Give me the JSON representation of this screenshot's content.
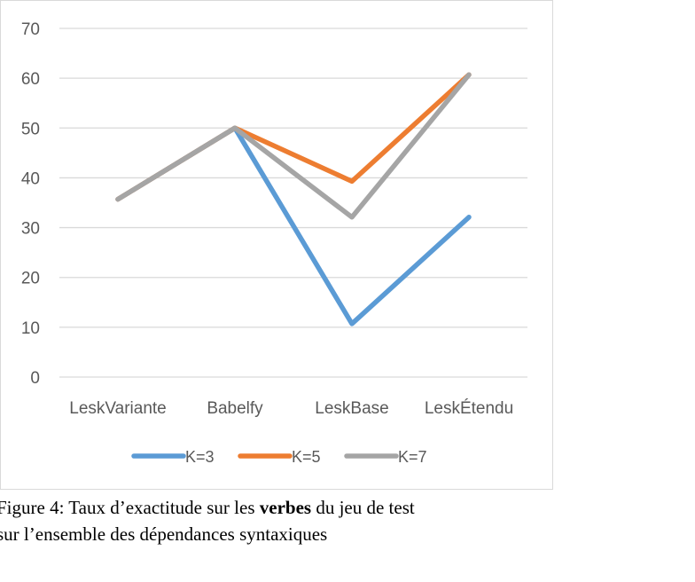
{
  "chart_data": {
    "type": "line",
    "categories": [
      "LeskVariante",
      "Babelfy",
      "LeskBase",
      "LeskÉtendu"
    ],
    "series": [
      {
        "name": "K=3",
        "color": "#5b9bd5",
        "values": [
          35.7,
          50,
          10.7,
          32.1
        ]
      },
      {
        "name": "K=5",
        "color": "#ed7d31",
        "values": [
          35.7,
          50,
          39.3,
          60.7
        ]
      },
      {
        "name": "K=7",
        "color": "#a5a5a5",
        "values": [
          35.7,
          50,
          32.1,
          60.7
        ]
      }
    ],
    "ylim": [
      0,
      70
    ],
    "yticks": [
      0,
      10,
      20,
      30,
      40,
      50,
      60,
      70
    ],
    "grid": true,
    "legend_position": "bottom"
  },
  "caption": {
    "part1": "Figure 4: Taux d’exactitude sur les ",
    "bold": "verbes",
    "part2": " du jeu de test",
    "line2": "sur l’ensemble des dépendances syntaxiques"
  }
}
